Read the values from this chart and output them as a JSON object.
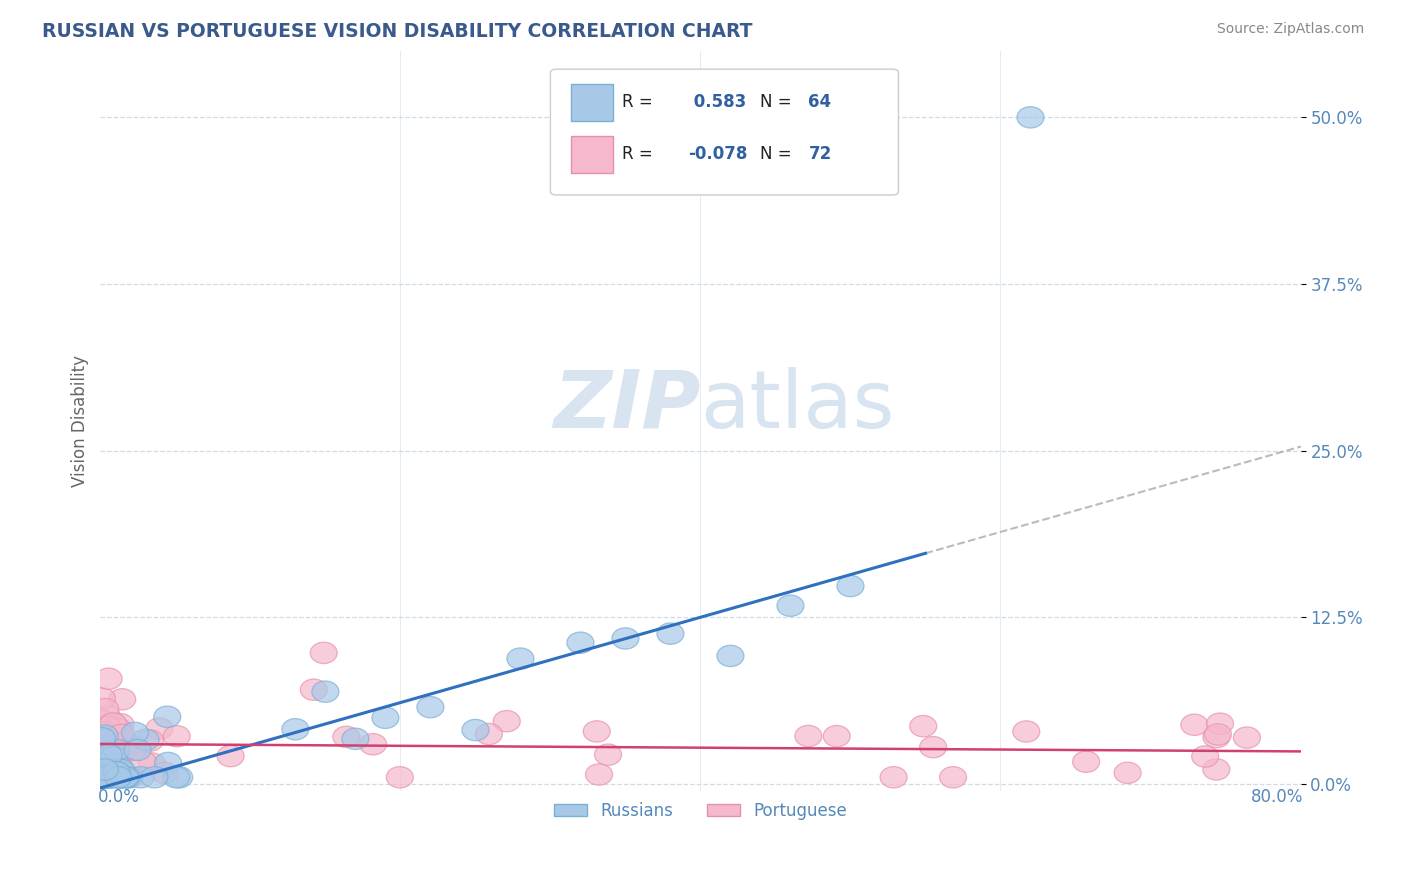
{
  "title": "RUSSIAN VS PORTUGUESE VISION DISABILITY CORRELATION CHART",
  "source": "Source: ZipAtlas.com",
  "ylabel": "Vision Disability",
  "ytick_labels": [
    "0.0%",
    "12.5%",
    "25.0%",
    "37.5%",
    "50.0%"
  ],
  "ytick_values": [
    0.0,
    0.125,
    0.25,
    0.375,
    0.5
  ],
  "xlim": [
    0.0,
    0.8
  ],
  "ylim": [
    -0.005,
    0.55
  ],
  "r_russian": 0.583,
  "n_russian": 64,
  "r_portuguese": -0.078,
  "n_portuguese": 72,
  "color_russian_fill": "#a8c8e8",
  "color_russian_edge": "#7aafd4",
  "color_portuguese_fill": "#f5b8cc",
  "color_portuguese_edge": "#e890aa",
  "color_russian_line": "#3070c0",
  "color_portuguese_line": "#d04070",
  "color_dash": "#aaaaaa",
  "title_color": "#3a5a8c",
  "axis_label_color": "#5588bb",
  "ylabel_color": "#666666",
  "watermark_color": "#d8e4f0",
  "legend_text_color": "#3060a0",
  "legend_label_color": "#222222",
  "background_color": "#ffffff",
  "grid_color": "#c8d8e8",
  "slope_russian": 0.32,
  "intercept_russian": -0.003,
  "slope_portuguese": -0.007,
  "intercept_portuguese": 0.03
}
